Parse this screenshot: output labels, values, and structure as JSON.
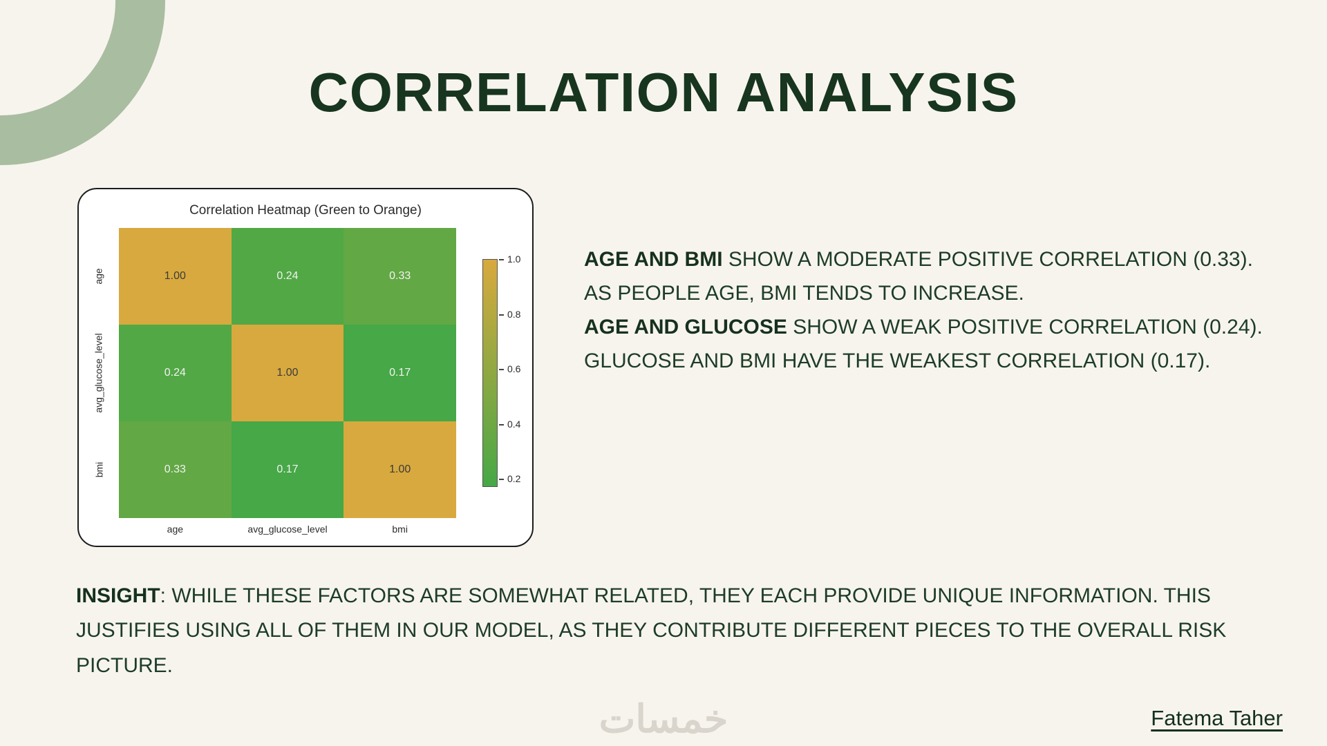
{
  "slide": {
    "title": "CORRELATION ANALYSIS",
    "watermark": "خمسات",
    "author": "Fatema Taher"
  },
  "chart_data": {
    "type": "heatmap",
    "title": "Correlation Heatmap (Green to Orange)",
    "categories": [
      "age",
      "avg_glucose_level",
      "bmi"
    ],
    "matrix": [
      [
        1.0,
        0.24,
        0.33
      ],
      [
        0.24,
        1.0,
        0.17
      ],
      [
        0.33,
        0.17,
        1.0
      ]
    ],
    "value_range": [
      0.17,
      1.0
    ],
    "colorbar_ticks": [
      1.0,
      0.8,
      0.6,
      0.4,
      0.2
    ],
    "colors": {
      "low": "#46a846",
      "high": "#d8a93e",
      "cell_text_dark": "#3b3b3b",
      "cell_text_light": "#f2f2f2"
    },
    "legend_position": "right",
    "grid": false
  },
  "findings": [
    {
      "lead": "AGE AND BMI",
      "text": " SHOW A MODERATE POSITIVE CORRELATION (0.33). AS PEOPLE AGE, BMI TENDS TO INCREASE."
    },
    {
      "lead": "AGE AND GLUCOSE",
      "text": " SHOW A WEAK POSITIVE CORRELATION (0.24)."
    },
    {
      "lead": "",
      "text": "GLUCOSE AND BMI HAVE THE WEAKEST CORRELATION (0.17)."
    }
  ],
  "insight": {
    "lead": "INSIGHT",
    "text": ": WHILE THESE FACTORS ARE SOMEWHAT RELATED, THEY EACH PROVIDE UNIQUE INFORMATION. THIS JUSTIFIES USING ALL OF THEM IN OUR MODEL, AS THEY CONTRIBUTE DIFFERENT PIECES TO THE OVERALL RISK PICTURE."
  }
}
